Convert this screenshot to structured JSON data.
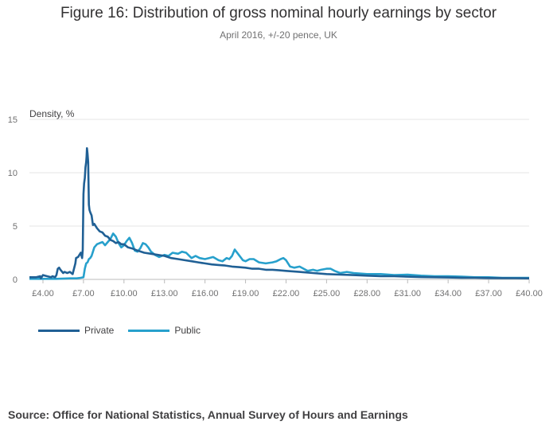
{
  "title": "Figure 16: Distribution of gross nominal hourly earnings by sector",
  "subtitle": "April 2016, +/-20 pence, UK",
  "source": "Source: Office for National Statistics, Annual Survey of Hours and Earnings",
  "colors": {
    "private": "#206095",
    "public": "#27a0cc",
    "grid": "#e6e6e6",
    "axis": "#bbbbbb"
  },
  "chart_data": {
    "type": "line",
    "title": "Figure 16: Distribution of gross nominal hourly earnings by sector",
    "subtitle": "April 2016, +/-20 pence, UK",
    "ylabel": "Density, %",
    "xlabel": "",
    "xlim": [
      3.0,
      40.0
    ],
    "ylim": [
      0,
      15
    ],
    "yticks": [
      0,
      5,
      10,
      15
    ],
    "xticks": [
      {
        "value": 4,
        "label": "£4.00"
      },
      {
        "value": 7,
        "label": "£7.00"
      },
      {
        "value": 10,
        "label": "£10.00"
      },
      {
        "value": 13,
        "label": "£13.00"
      },
      {
        "value": 16,
        "label": "£16.00"
      },
      {
        "value": 19,
        "label": "£19.00"
      },
      {
        "value": 22,
        "label": "£22.00"
      },
      {
        "value": 25,
        "label": "£25.00"
      },
      {
        "value": 28,
        "label": "£28.00"
      },
      {
        "value": 31,
        "label": "£31.00"
      },
      {
        "value": 34,
        "label": "£34.00"
      },
      {
        "value": 37,
        "label": "£37.00"
      },
      {
        "value": 40,
        "label": "£40.00"
      }
    ],
    "series": [
      {
        "name": "Private",
        "color": "#206095",
        "x": [
          3.0,
          3.5,
          3.8,
          3.85,
          4.0,
          4.3,
          4.6,
          4.7,
          4.9,
          5.0,
          5.1,
          5.2,
          5.3,
          5.5,
          5.6,
          5.8,
          6.0,
          6.2,
          6.3,
          6.4,
          6.45,
          6.6,
          6.8,
          6.9,
          6.95,
          7.0,
          7.05,
          7.1,
          7.15,
          7.2,
          7.23,
          7.26,
          7.3,
          7.35,
          7.4,
          7.45,
          7.5,
          7.6,
          7.7,
          7.8,
          8.0,
          8.2,
          8.4,
          8.6,
          8.8,
          9.0,
          9.2,
          9.4,
          9.6,
          9.8,
          10.0,
          10.3,
          10.6,
          11.0,
          11.5,
          12.0,
          12.5,
          13.0,
          13.5,
          14.0,
          14.5,
          15.0,
          15.5,
          16.0,
          16.5,
          17.0,
          17.5,
          18.0,
          18.5,
          19.0,
          19.5,
          20.0,
          20.5,
          21.0,
          21.5,
          22.0,
          23.0,
          24.0,
          25.0,
          26.0,
          27.0,
          28.0,
          29.0,
          30.0,
          31.0,
          32.0,
          33.0,
          34.0,
          35.0,
          36.0,
          37.0,
          38.0,
          39.0,
          40.0
        ],
        "values": [
          0.2,
          0.2,
          0.3,
          0.1,
          0.4,
          0.3,
          0.2,
          0.3,
          0.2,
          0.4,
          1.0,
          1.1,
          0.9,
          0.6,
          0.7,
          0.6,
          0.7,
          0.5,
          1.0,
          1.5,
          2.0,
          2.1,
          2.5,
          2.0,
          2.8,
          8.0,
          9.0,
          9.5,
          10.5,
          11.0,
          11.5,
          12.3,
          11.8,
          11.0,
          7.0,
          6.5,
          6.3,
          6.0,
          5.1,
          5.2,
          4.8,
          4.5,
          4.4,
          4.1,
          4.0,
          3.7,
          3.6,
          3.4,
          3.5,
          3.3,
          3.3,
          3.0,
          2.9,
          2.7,
          2.5,
          2.4,
          2.3,
          2.2,
          2.0,
          1.9,
          1.8,
          1.7,
          1.6,
          1.5,
          1.4,
          1.35,
          1.3,
          1.2,
          1.15,
          1.1,
          1.0,
          1.0,
          0.9,
          0.9,
          0.85,
          0.8,
          0.7,
          0.6,
          0.5,
          0.45,
          0.4,
          0.35,
          0.3,
          0.3,
          0.25,
          0.22,
          0.2,
          0.18,
          0.16,
          0.15,
          0.13,
          0.12,
          0.11,
          0.1
        ]
      },
      {
        "name": "Public",
        "color": "#27a0cc",
        "x": [
          3.0,
          4.0,
          5.0,
          6.0,
          6.5,
          6.8,
          7.0,
          7.1,
          7.2,
          7.3,
          7.4,
          7.5,
          7.6,
          7.7,
          7.8,
          8.0,
          8.2,
          8.4,
          8.6,
          8.8,
          9.0,
          9.2,
          9.4,
          9.5,
          9.6,
          9.8,
          10.0,
          10.2,
          10.4,
          10.6,
          10.8,
          11.0,
          11.2,
          11.4,
          11.6,
          11.8,
          12.0,
          12.3,
          12.6,
          13.0,
          13.3,
          13.6,
          14.0,
          14.3,
          14.6,
          15.0,
          15.3,
          15.6,
          16.0,
          16.3,
          16.6,
          17.0,
          17.3,
          17.6,
          17.8,
          18.0,
          18.2,
          18.5,
          18.8,
          19.0,
          19.3,
          19.6,
          20.0,
          20.5,
          21.0,
          21.3,
          21.6,
          21.8,
          22.0,
          22.3,
          22.6,
          23.0,
          23.3,
          23.6,
          24.0,
          24.3,
          24.6,
          25.0,
          25.3,
          25.6,
          26.0,
          26.5,
          27.0,
          28.0,
          29.0,
          30.0,
          31.0,
          32.0,
          33.0,
          34.0,
          35.0,
          36.0,
          37.0,
          38.0,
          39.0,
          40.0
        ],
        "values": [
          0.05,
          0.05,
          0.05,
          0.1,
          0.1,
          0.15,
          0.2,
          1.0,
          1.5,
          1.6,
          1.9,
          2.0,
          2.2,
          2.6,
          3.0,
          3.3,
          3.4,
          3.5,
          3.2,
          3.5,
          3.8,
          4.3,
          4.0,
          3.7,
          3.4,
          3.0,
          3.2,
          3.6,
          3.9,
          3.4,
          2.7,
          2.6,
          2.9,
          3.4,
          3.3,
          3.0,
          2.6,
          2.3,
          2.1,
          2.3,
          2.2,
          2.5,
          2.4,
          2.6,
          2.5,
          2.0,
          2.2,
          2.0,
          1.9,
          2.0,
          2.1,
          1.8,
          1.7,
          2.0,
          1.9,
          2.2,
          2.8,
          2.3,
          1.8,
          1.7,
          1.9,
          1.9,
          1.6,
          1.5,
          1.6,
          1.7,
          1.9,
          2.0,
          1.8,
          1.2,
          1.1,
          1.2,
          1.0,
          0.8,
          0.9,
          0.8,
          0.9,
          1.0,
          1.0,
          0.8,
          0.6,
          0.7,
          0.6,
          0.5,
          0.5,
          0.4,
          0.45,
          0.35,
          0.3,
          0.3,
          0.25,
          0.2,
          0.2,
          0.15,
          0.15,
          0.15
        ]
      }
    ]
  }
}
